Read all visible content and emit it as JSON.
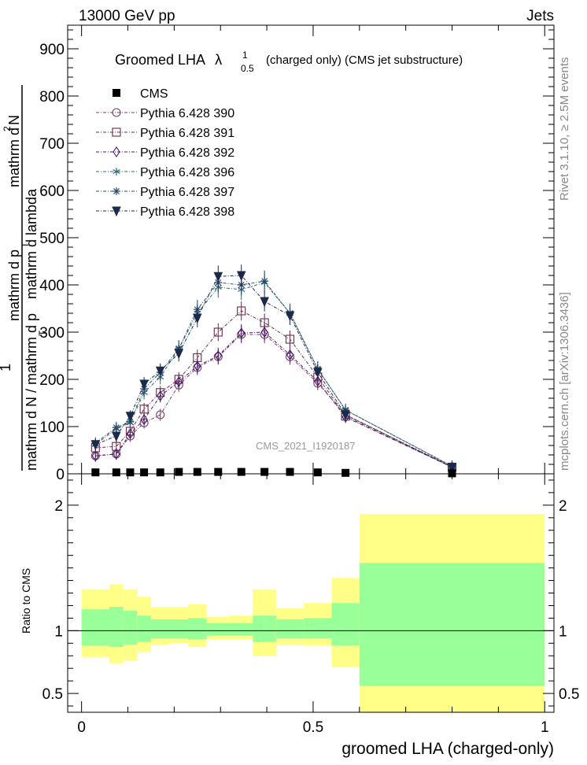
{
  "header": {
    "left": "13000 GeV pp",
    "right": "Jets"
  },
  "side": {
    "rivet": "Rivet 3.1.10, ≥ 2.5M events",
    "mcplots": "mcplots.cern.ch [arXiv:1306.3436]"
  },
  "chart_data": [
    {
      "type": "line",
      "title_main": "Groomed LHA",
      "title_symbol": "λ",
      "title_sup": "1",
      "title_sub": "0.5",
      "title_tail": "(charged only) (CMS jet substructure)",
      "watermark": "CMS_2021_I1920187",
      "ylabel_one": "1",
      "ylabel_den": "mathrm d N / mathrm d p",
      "ylabel_den_sub": "T",
      "ylabel_num_a": "mathrm d",
      "ylabel_num_sup": "2",
      "ylabel_num_b": "N",
      "ylabel_num2": "mathrm d p",
      "ylabel_num2_sub": "T",
      "ylabel_num3": "mathrm d lambda",
      "xlim": [
        -0.03,
        1.02
      ],
      "ylim": [
        0,
        950
      ],
      "yticks": [
        0,
        100,
        200,
        300,
        400,
        500,
        600,
        700,
        800,
        900
      ],
      "ytick_labels": [
        "0",
        "100",
        "200",
        "300",
        "400",
        "500",
        "600",
        "700",
        "800",
        "900"
      ],
      "x": [
        0.03,
        0.075,
        0.105,
        0.135,
        0.17,
        0.21,
        0.25,
        0.295,
        0.345,
        0.395,
        0.45,
        0.51,
        0.57,
        0.8
      ],
      "data": {
        "name": "CMS",
        "y": [
          3,
          3,
          3,
          3,
          3,
          4,
          4,
          4,
          4,
          4,
          4,
          3,
          2,
          1
        ]
      },
      "series": [
        {
          "name": "Pythia 6.428 390",
          "color": "#7a3a6a",
          "marker": "circle",
          "y": [
            38,
            42,
            80,
            108,
            125,
            188,
            225,
            248,
            295,
            295,
            248,
            192,
            125,
            15
          ]
        },
        {
          "name": "Pythia 6.428 391",
          "color": "#6a2a4a",
          "marker": "square",
          "y": [
            55,
            58,
            90,
            137,
            172,
            200,
            246,
            300,
            345,
            320,
            285,
            205,
            122,
            14
          ]
        },
        {
          "name": "Pythia 6.428 392",
          "color": "#4a1a6a",
          "marker": "diamond",
          "y": [
            38,
            42,
            85,
            115,
            165,
            195,
            228,
            250,
            298,
            300,
            252,
            196,
            120,
            14
          ]
        },
        {
          "name": "Pythia 6.428 396",
          "color": "#2a6a7a",
          "marker": "star",
          "y": [
            62,
            95,
            108,
            172,
            205,
            265,
            340,
            395,
            390,
            405,
            340,
            222,
            135,
            16
          ]
        },
        {
          "name": "Pythia 6.428 397",
          "color": "#2a4a6a",
          "marker": "asterisk",
          "y": [
            65,
            98,
            110,
            180,
            215,
            265,
            348,
            405,
            400,
            408,
            340,
            222,
            135,
            16
          ]
        },
        {
          "name": "Pythia 6.428 398",
          "color": "#1a2a4a",
          "marker": "triangle-down",
          "y": [
            62,
            80,
            122,
            190,
            218,
            255,
            330,
            418,
            420,
            365,
            335,
            215,
            125,
            14
          ]
        }
      ]
    },
    {
      "type": "area",
      "ylabel": "Ratio to CMS",
      "xlabel": "groomed LHA (charged-only)",
      "xlim": [
        -0.03,
        1.02
      ],
      "ylim": [
        0.35,
        2.25
      ],
      "yticks": [
        0.5,
        1,
        2
      ],
      "ytick_labels": [
        "0.5",
        "1",
        "2"
      ],
      "xticks": [
        0,
        0.5,
        1
      ],
      "xtick_labels": [
        "0",
        "0.5",
        "1"
      ],
      "bins": [
        {
          "lo": 0.0,
          "hi": 0.06,
          "inner": [
            0.88,
            1.17
          ],
          "outer": [
            0.79,
            1.33
          ]
        },
        {
          "lo": 0.06,
          "hi": 0.09,
          "inner": [
            0.87,
            1.19
          ],
          "outer": [
            0.74,
            1.37
          ]
        },
        {
          "lo": 0.09,
          "hi": 0.12,
          "inner": [
            0.89,
            1.16
          ],
          "outer": [
            0.76,
            1.33
          ]
        },
        {
          "lo": 0.12,
          "hi": 0.15,
          "inner": [
            0.91,
            1.12
          ],
          "outer": [
            0.83,
            1.27
          ]
        },
        {
          "lo": 0.15,
          "hi": 0.19,
          "inner": [
            0.94,
            1.09
          ],
          "outer": [
            0.89,
            1.19
          ]
        },
        {
          "lo": 0.19,
          "hi": 0.23,
          "inner": [
            0.94,
            1.09
          ],
          "outer": [
            0.9,
            1.19
          ]
        },
        {
          "lo": 0.23,
          "hi": 0.27,
          "inner": [
            0.93,
            1.1
          ],
          "outer": [
            0.87,
            1.21
          ]
        },
        {
          "lo": 0.27,
          "hi": 0.32,
          "inner": [
            0.96,
            1.06
          ],
          "outer": [
            0.93,
            1.11
          ]
        },
        {
          "lo": 0.32,
          "hi": 0.37,
          "inner": [
            0.96,
            1.06
          ],
          "outer": [
            0.93,
            1.12
          ]
        },
        {
          "lo": 0.37,
          "hi": 0.42,
          "inner": [
            0.91,
            1.12
          ],
          "outer": [
            0.8,
            1.33
          ]
        },
        {
          "lo": 0.42,
          "hi": 0.48,
          "inner": [
            0.94,
            1.09
          ],
          "outer": [
            0.89,
            1.18
          ]
        },
        {
          "lo": 0.48,
          "hi": 0.54,
          "inner": [
            0.94,
            1.1
          ],
          "outer": [
            0.88,
            1.22
          ]
        },
        {
          "lo": 0.54,
          "hi": 0.6,
          "inner": [
            0.88,
            1.22
          ],
          "outer": [
            0.71,
            1.42
          ]
        },
        {
          "lo": 0.6,
          "hi": 1.0,
          "inner": [
            0.56,
            1.54
          ],
          "outer": [
            0.35,
            1.93
          ]
        }
      ],
      "colors": {
        "inner": "#99ff99",
        "outer": "#ffff88"
      }
    }
  ]
}
